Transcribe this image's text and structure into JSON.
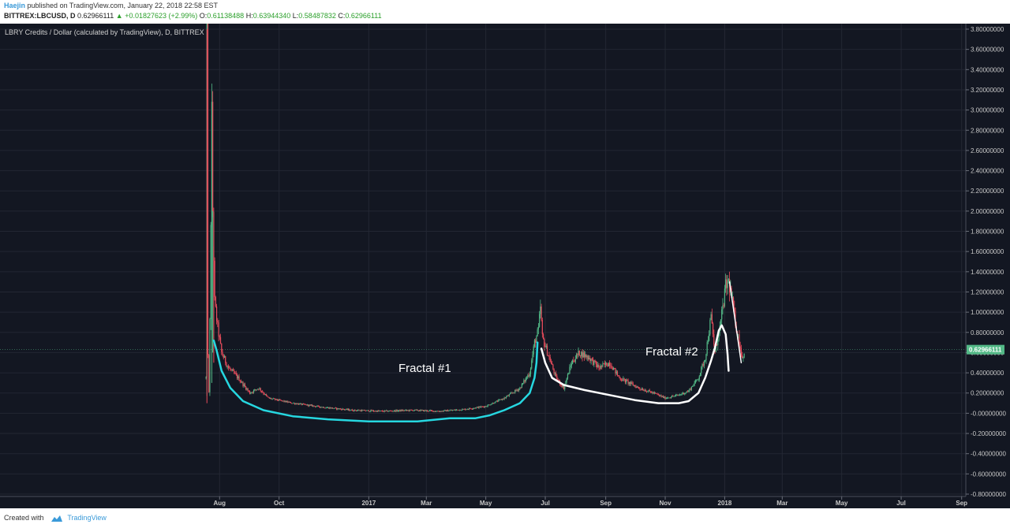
{
  "header": {
    "author": "Haejin",
    "published_text": "published on TradingView.com, January 22, 2018 22:58 EST",
    "symbol": "BITTREX:LBCUSD, D",
    "last": "0.62966111",
    "change": "+0.01827623 (+2.99%)",
    "o_label": "O:",
    "o_value": "0.61138488",
    "h_label": "H:",
    "h_value": "0.63944340",
    "l_label": "L:",
    "l_value": "0.58487832",
    "c_label": "C:",
    "c_value": "0.62966111"
  },
  "footer": {
    "created_with": "Created with",
    "brand": "TradingView"
  },
  "chart_data": {
    "type": "candlestick",
    "title": "LBRY Credits / Dollar (calculated by TradingView), D, BITTREX",
    "yticks": [
      "3.80000000",
      "3.60000000",
      "3.40000000",
      "3.20000000",
      "3.00000000",
      "2.80000000",
      "2.60000000",
      "2.40000000",
      "2.20000000",
      "2.00000000",
      "1.80000000",
      "1.60000000",
      "1.40000000",
      "1.20000000",
      "1.00000000",
      "0.80000000",
      "0.60000000",
      "0.40000000",
      "0.20000000",
      "-0.00000000",
      "-0.20000000",
      "-0.40000000",
      "-0.60000000",
      "-0.80000000"
    ],
    "ylim": [
      -0.8,
      3.8
    ],
    "xticks": [
      "Aug",
      "Oct",
      "2017",
      "Mar",
      "May",
      "Jul",
      "Sep",
      "Nov",
      "2018",
      "Mar",
      "May",
      "Jul",
      "Sep"
    ],
    "xlim": [
      "2016-07-01",
      "2018-09-15"
    ],
    "last_price_label": "0.62966111",
    "last_price": 0.62966111,
    "annotations": [
      {
        "text": "Fractal #1",
        "color": "#26d7e0"
      },
      {
        "text": "Fractal #2",
        "color": "#ffffff"
      }
    ],
    "price_path": [
      [
        "2016-07-18",
        0.35
      ],
      [
        "2016-07-19",
        3.8
      ],
      [
        "2016-07-20",
        0.6
      ],
      [
        "2016-07-21",
        0.2
      ],
      [
        "2016-07-22",
        0.9
      ],
      [
        "2016-07-24",
        2.95
      ],
      [
        "2016-07-25",
        2.0
      ],
      [
        "2016-07-27",
        1.1
      ],
      [
        "2016-07-30",
        0.85
      ],
      [
        "2016-08-03",
        0.6
      ],
      [
        "2016-08-10",
        0.45
      ],
      [
        "2016-08-20",
        0.35
      ],
      [
        "2016-09-01",
        0.2
      ],
      [
        "2016-09-10",
        0.25
      ],
      [
        "2016-09-20",
        0.15
      ],
      [
        "2016-10-15",
        0.1
      ],
      [
        "2016-11-15",
        0.06
      ],
      [
        "2016-12-15",
        0.03
      ],
      [
        "2017-01-15",
        0.02
      ],
      [
        "2017-02-15",
        0.03
      ],
      [
        "2017-03-15",
        0.02
      ],
      [
        "2017-04-10",
        0.04
      ],
      [
        "2017-05-01",
        0.07
      ],
      [
        "2017-05-20",
        0.15
      ],
      [
        "2017-06-05",
        0.25
      ],
      [
        "2017-06-15",
        0.4
      ],
      [
        "2017-06-20",
        0.7
      ],
      [
        "2017-06-24",
        0.82
      ],
      [
        "2017-06-26",
        1.05
      ],
      [
        "2017-06-28",
        0.75
      ],
      [
        "2017-07-05",
        0.55
      ],
      [
        "2017-07-12",
        0.35
      ],
      [
        "2017-07-20",
        0.25
      ],
      [
        "2017-07-28",
        0.5
      ],
      [
        "2017-08-05",
        0.6
      ],
      [
        "2017-08-15",
        0.55
      ],
      [
        "2017-08-25",
        0.45
      ],
      [
        "2017-09-05",
        0.5
      ],
      [
        "2017-09-15",
        0.35
      ],
      [
        "2017-09-25",
        0.3
      ],
      [
        "2017-10-05",
        0.25
      ],
      [
        "2017-10-20",
        0.2
      ],
      [
        "2017-11-01",
        0.15
      ],
      [
        "2017-11-15",
        0.18
      ],
      [
        "2017-11-25",
        0.22
      ],
      [
        "2017-12-05",
        0.35
      ],
      [
        "2017-12-12",
        0.55
      ],
      [
        "2017-12-18",
        0.95
      ],
      [
        "2017-12-22",
        0.6
      ],
      [
        "2017-12-28",
        0.9
      ],
      [
        "2018-01-02",
        1.25
      ],
      [
        "2018-01-05",
        1.3
      ],
      [
        "2018-01-08",
        1.15
      ],
      [
        "2018-01-12",
        0.9
      ],
      [
        "2018-01-16",
        0.7
      ],
      [
        "2018-01-19",
        0.55
      ],
      [
        "2018-01-22",
        0.63
      ]
    ],
    "fractal_1_curve": [
      [
        "2016-07-26",
        0.72
      ],
      [
        "2016-07-29",
        0.62
      ],
      [
        "2016-08-03",
        0.42
      ],
      [
        "2016-08-12",
        0.25
      ],
      [
        "2016-08-25",
        0.12
      ],
      [
        "2016-09-15",
        0.03
      ],
      [
        "2016-10-15",
        -0.03
      ],
      [
        "2016-11-20",
        -0.06
      ],
      [
        "2017-01-01",
        -0.08
      ],
      [
        "2017-02-20",
        -0.08
      ],
      [
        "2017-03-25",
        -0.05
      ],
      [
        "2017-04-20",
        -0.05
      ],
      [
        "2017-05-05",
        -0.02
      ],
      [
        "2017-05-20",
        0.03
      ],
      [
        "2017-06-05",
        0.1
      ],
      [
        "2017-06-15",
        0.2
      ],
      [
        "2017-06-20",
        0.35
      ],
      [
        "2017-06-22",
        0.5
      ],
      [
        "2017-06-23",
        0.7
      ]
    ],
    "fractal_2_curve": [
      [
        "2017-06-27",
        0.64
      ],
      [
        "2017-07-01",
        0.5
      ],
      [
        "2017-07-08",
        0.35
      ],
      [
        "2017-07-20",
        0.28
      ],
      [
        "2017-08-10",
        0.23
      ],
      [
        "2017-09-05",
        0.18
      ],
      [
        "2017-10-01",
        0.13
      ],
      [
        "2017-10-25",
        0.1
      ],
      [
        "2017-11-15",
        0.1
      ],
      [
        "2017-11-25",
        0.12
      ],
      [
        "2017-12-05",
        0.2
      ],
      [
        "2017-12-12",
        0.35
      ],
      [
        "2017-12-18",
        0.52
      ],
      [
        "2017-12-22",
        0.65
      ],
      [
        "2017-12-26",
        0.82
      ],
      [
        "2017-12-29",
        0.87
      ],
      [
        "2018-01-02",
        0.78
      ],
      [
        "2018-01-04",
        0.58
      ],
      [
        "2018-01-05",
        0.42
      ]
    ],
    "trend_line_2018": [
      [
        "2018-01-06",
        1.3
      ],
      [
        "2018-01-18",
        0.5
      ]
    ]
  }
}
